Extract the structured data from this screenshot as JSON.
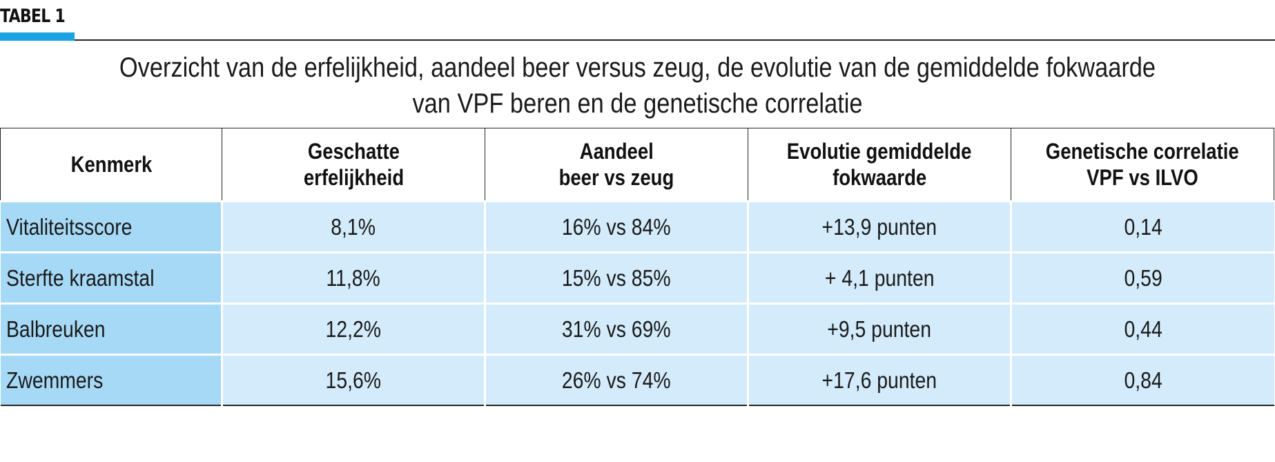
{
  "label": "TABEL 1",
  "accent_color": "#1aa3e0",
  "header_row_color": "#ffffff",
  "first_column_color": "#a6d9f6",
  "cell_color": "#d3ebfb",
  "title": {
    "line1": "Overzicht van de erfelijkheid, aandeel beer versus zeug, de evolutie van de gemiddelde fokwaarde",
    "line2": "van VPF beren en de genetische correlatie"
  },
  "table": {
    "headers": [
      {
        "line1": "Kenmerk",
        "line2": ""
      },
      {
        "line1": "Geschatte",
        "line2": "erfelijkheid"
      },
      {
        "line1": "Aandeel",
        "line2": "beer vs zeug"
      },
      {
        "line1": "Evolutie gemiddelde",
        "line2": "fokwaarde"
      },
      {
        "line1": "Genetische correlatie",
        "line2": "VPF vs ILVO"
      }
    ],
    "rows": [
      [
        "Vitaliteitsscore",
        "8,1%",
        "16% vs 84%",
        "+13,9 punten",
        "0,14"
      ],
      [
        "Sterfte kraamstal",
        "11,8%",
        "15% vs 85%",
        "+ 4,1 punten",
        "0,59"
      ],
      [
        "Balbreuken",
        "12,2%",
        "31% vs 69%",
        "+9,5 punten",
        "0,44"
      ],
      [
        "Zwemmers",
        "15,6%",
        "26% vs 74%",
        "+17,6 punten",
        "0,84"
      ]
    ]
  }
}
